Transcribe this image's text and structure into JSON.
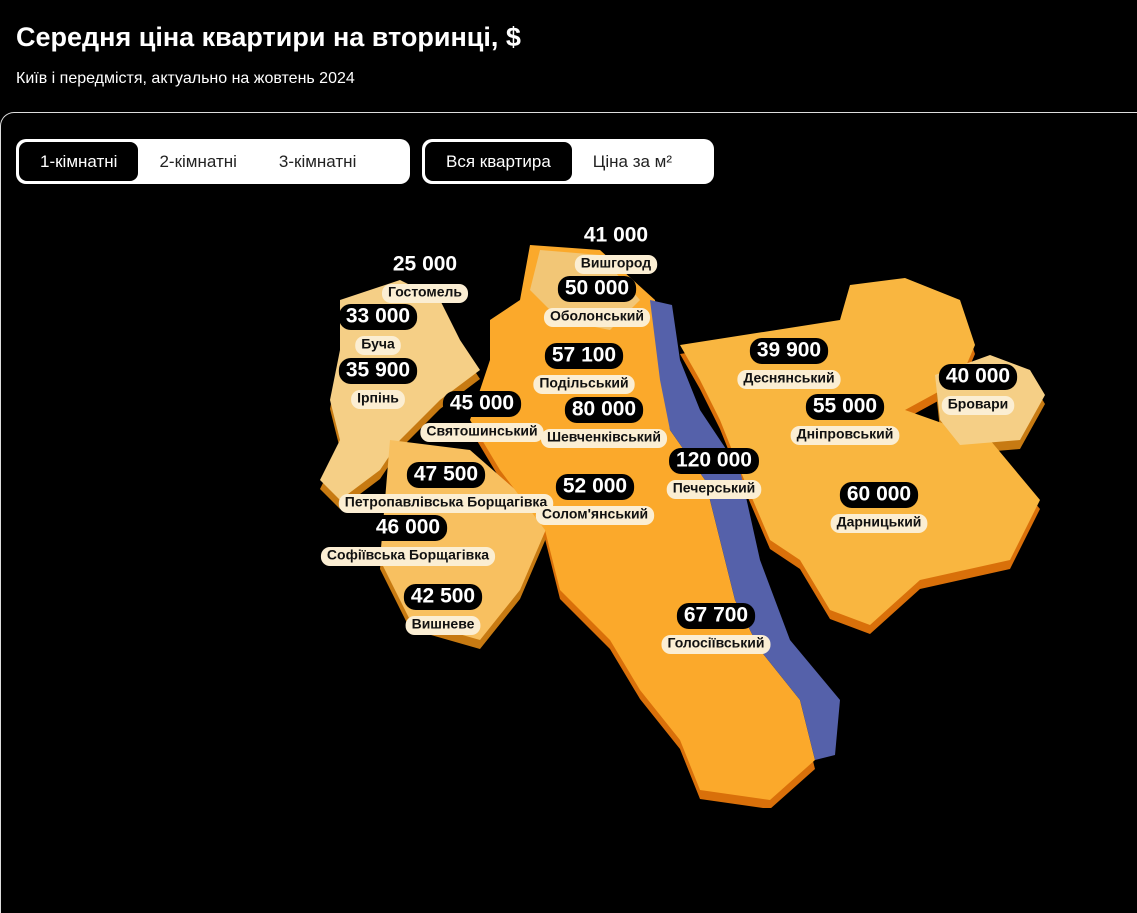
{
  "header": {
    "title": "Середня ціна квартири на вторинці, $",
    "subtitle": "Київ і передмістя, актуально на жовтень 2024"
  },
  "room_tabs": [
    "1-кімнатні",
    "2-кімнатні",
    "3-кімнатні"
  ],
  "price_tabs": [
    "Вся квартира",
    "Ціна за м²"
  ],
  "regions": [
    {
      "name": "Вишгород",
      "price": "41 000"
    },
    {
      "name": "Гостомель",
      "price": "25 000"
    },
    {
      "name": "Оболонський",
      "price": "50 000"
    },
    {
      "name": "Буча",
      "price": "33 000"
    },
    {
      "name": "Подільський",
      "price": "57 100"
    },
    {
      "name": "Деснянський",
      "price": "39 900"
    },
    {
      "name": "Ірпінь",
      "price": "35 900"
    },
    {
      "name": "Бровари",
      "price": "40 000"
    },
    {
      "name": "Святошинський",
      "price": "45 000"
    },
    {
      "name": "Шевченківський",
      "price": "80 000"
    },
    {
      "name": "Дніпровський",
      "price": "55 000"
    },
    {
      "name": "Печерський",
      "price": "120 000"
    },
    {
      "name": "Петропавлівська Борщагівка",
      "price": "47 500"
    },
    {
      "name": "Солом'янський",
      "price": "52 000"
    },
    {
      "name": "Дарницький",
      "price": "60 000"
    },
    {
      "name": "Софіївська Борщагівка",
      "price": "46 000"
    },
    {
      "name": "Вишневе",
      "price": "42 500"
    },
    {
      "name": "Голосіївський",
      "price": "67 700"
    }
  ]
}
